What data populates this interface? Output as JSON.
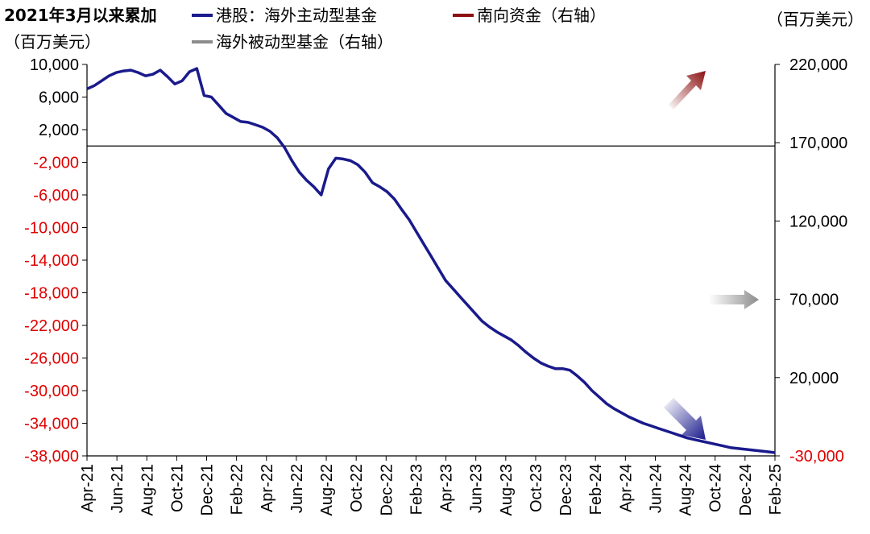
{
  "chart_data": {
    "type": "line",
    "title": "2021年3月以来累加",
    "left_unit": "（百万美元）",
    "right_unit": "（百万美元）",
    "x_labels": [
      "Apr-21",
      "Jun-21",
      "Aug-21",
      "Oct-21",
      "Dec-21",
      "Feb-22",
      "Apr-22",
      "Jun-22",
      "Aug-22",
      "Oct-22",
      "Dec-22",
      "Feb-23",
      "Apr-23",
      "Jun-23",
      "Aug-23",
      "Oct-23",
      "Dec-23",
      "Feb-24",
      "Apr-24",
      "Jun-24",
      "Aug-24",
      "Oct-24",
      "Dec-24",
      "Feb-25"
    ],
    "y_left": {
      "ticks": [
        10000,
        6000,
        2000,
        -2000,
        -6000,
        -10000,
        -14000,
        -18000,
        -22000,
        -26000,
        -30000,
        -34000,
        -38000
      ],
      "tick_labels": [
        "10,000",
        "6,000",
        "2,000",
        "-2,000",
        "-6,000",
        "-10,000",
        "-14,000",
        "-18,000",
        "-22,000",
        "-26,000",
        "-30,000",
        "-34,000",
        "-38,000"
      ],
      "range": [
        -38000,
        10000
      ]
    },
    "y_right": {
      "ticks": [
        220000,
        170000,
        120000,
        70000,
        20000,
        -30000
      ],
      "tick_labels": [
        "220,000",
        "170,000",
        "120,000",
        "70,000",
        "20,000",
        "-30,000"
      ],
      "range": [
        -30000,
        220000
      ]
    },
    "series": [
      {
        "name": "港股：海外主动型基金",
        "axis": "left",
        "color": "#1a1a8c",
        "x": [
          0,
          0.5,
          1,
          1.5,
          2,
          2.5,
          3,
          3.5,
          4,
          4.5,
          5,
          5.5,
          6,
          6.5,
          7,
          7.5,
          8,
          8.5,
          9,
          9.5,
          10,
          10.5,
          11,
          11.5,
          12,
          12.5,
          13,
          13.5,
          14,
          14.5,
          15,
          15.5,
          16,
          16.5,
          17,
          17.5,
          18,
          18.5,
          19,
          19.5,
          20,
          20.5,
          21,
          21.5,
          22,
          22.5,
          23,
          23.5,
          24,
          24.5,
          25,
          25.5,
          26,
          26.5,
          27,
          27.5,
          28,
          28.5,
          29,
          29.5,
          30,
          30.5,
          31,
          31.5,
          32,
          32.5,
          33,
          33.5,
          34,
          34.5,
          35,
          35.5,
          36,
          36.5,
          37,
          37.5,
          38,
          38.5,
          39,
          39.5,
          40,
          40.5,
          41,
          41.5,
          42,
          42.5,
          43,
          43.5,
          44,
          44.5,
          45,
          45.5,
          46,
          46.5,
          47
        ],
        "values": [
          7000,
          7400,
          8000,
          8600,
          9000,
          9200,
          9300,
          9000,
          8600,
          8800,
          9300,
          8500,
          7600,
          8000,
          9100,
          9500,
          6200,
          6000,
          5000,
          4000,
          3500,
          3000,
          2900,
          2600,
          2300,
          1800,
          1000,
          -200,
          -1800,
          -3200,
          -4200,
          -5000,
          -6000,
          -2800,
          -1500,
          -1600,
          -1800,
          -2300,
          -3200,
          -4500,
          -5000,
          -5600,
          -6500,
          -7800,
          -9000,
          -10500,
          -12000,
          -13500,
          -15000,
          -16500,
          -17500,
          -18500,
          -19500,
          -20500,
          -21500,
          -22200,
          -22800,
          -23300,
          -23800,
          -24500,
          -25300,
          -26000,
          -26600,
          -27000,
          -27300,
          -27300,
          -27500,
          -28200,
          -29000,
          -30000,
          -30800,
          -31600,
          -32200,
          -32700,
          -33200,
          -33600,
          -34000,
          -34300,
          -34600,
          -34900,
          -35200,
          -35500,
          -35800,
          -36000,
          -36200,
          -36400,
          -36600,
          -36800,
          -37000,
          -37100,
          -37200,
          -37300,
          -37400,
          -37500,
          -37600
        ],
        "values_note": ""
      },
      {
        "name": "南向资金（右轴）",
        "axis": "right",
        "color": "#8b1010",
        "x": [],
        "values": []
      },
      {
        "name": "海外被动型基金（右轴）",
        "axis": "right",
        "color": "#8c8c8c",
        "x": [],
        "values": []
      }
    ],
    "grid": false,
    "legend": "top"
  }
}
